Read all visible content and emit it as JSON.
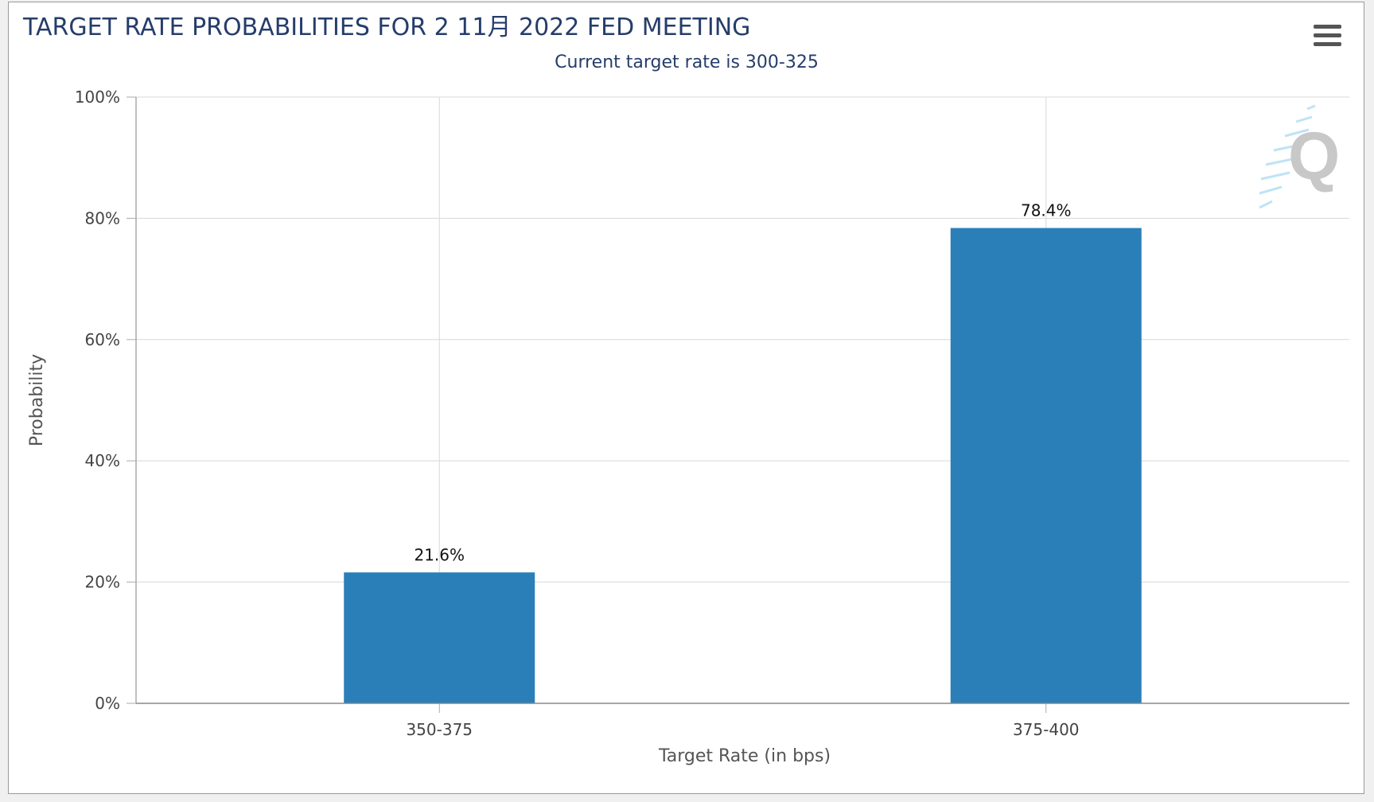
{
  "chart_data": {
    "type": "bar",
    "title": "TARGET RATE PROBABILITIES FOR 2 11月 2022 FED MEETING",
    "subtitle": "Current target rate is 300-325",
    "xlabel": "Target Rate (in bps)",
    "ylabel": "Probability",
    "categories": [
      "350-375",
      "375-400"
    ],
    "values": [
      21.6,
      78.4
    ],
    "data_labels": [
      "21.6%",
      "78.4%"
    ],
    "ylim": [
      0,
      100
    ],
    "yticks": [
      0,
      20,
      40,
      60,
      80,
      100
    ],
    "ytick_labels": [
      "0%",
      "20%",
      "40%",
      "60%",
      "80%",
      "100%"
    ],
    "grid": true,
    "bar_color": "#2a7fb8"
  },
  "menu": {
    "icon": "hamburger-menu-icon"
  },
  "watermark": {
    "icon": "quikstrike-q-logo",
    "text": "Q"
  }
}
